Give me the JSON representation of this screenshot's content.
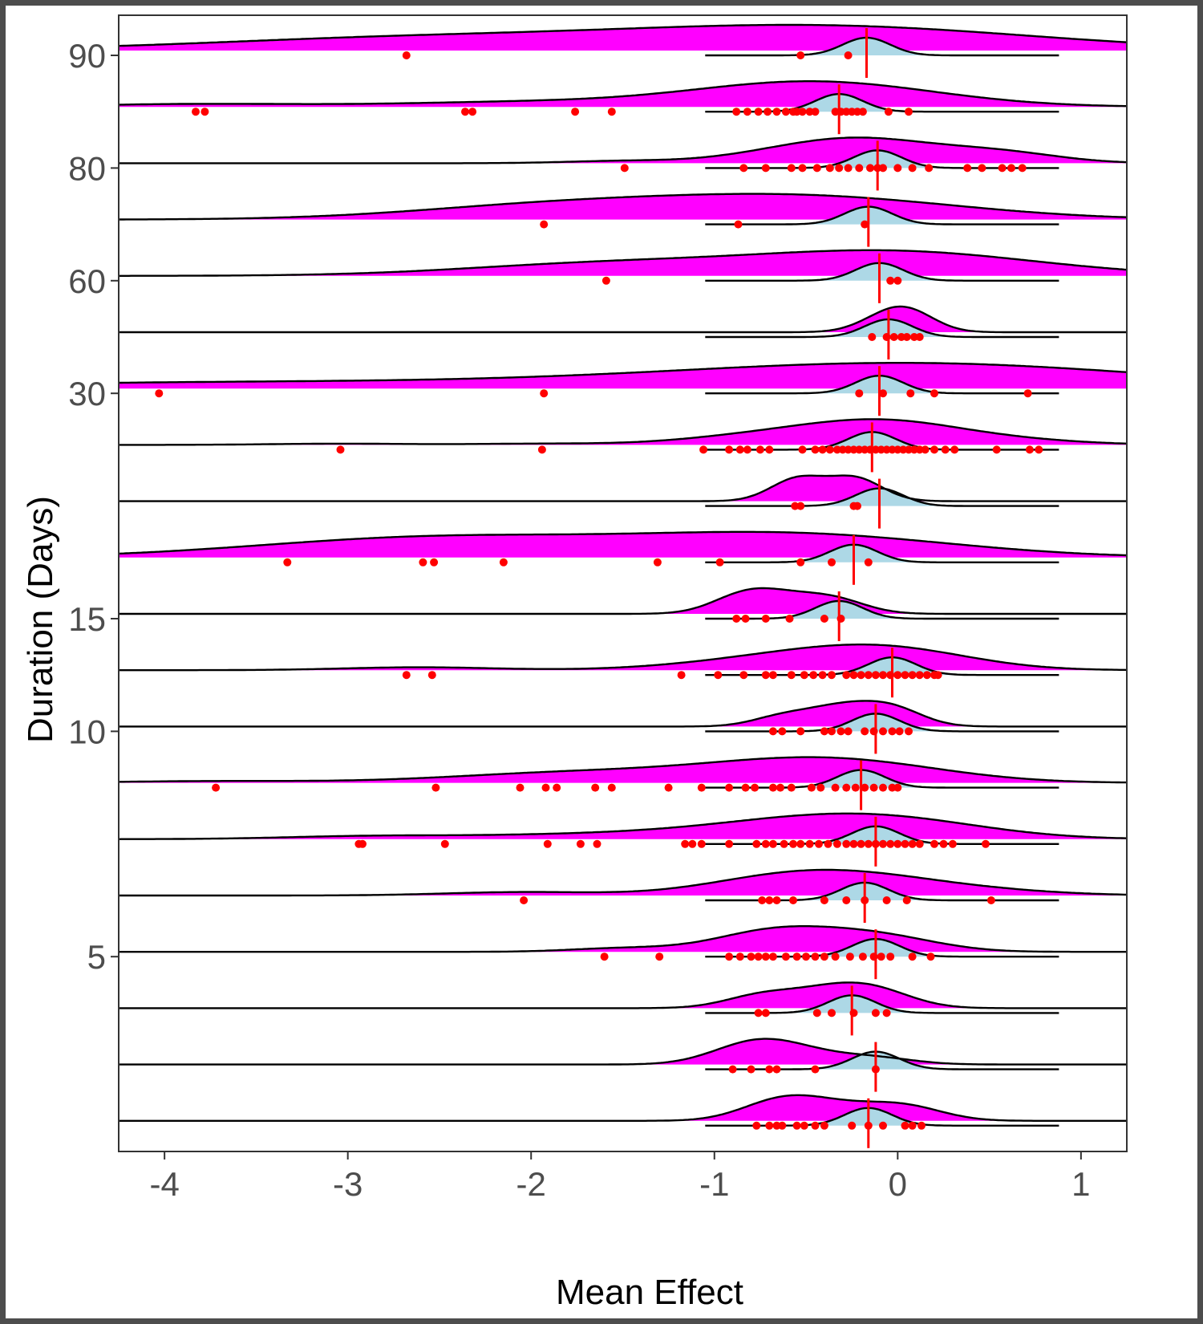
{
  "chart_data": {
    "type": "ridgeline",
    "xlabel": "Mean Effect",
    "ylabel": "Duration (Days)",
    "xlim": [
      -4.25,
      1.25
    ],
    "x_ticks": [
      "-4",
      "-3",
      "-2",
      "-1",
      "0",
      "1"
    ],
    "y_tick_labels": [
      {
        "row": 0,
        "label": "90"
      },
      {
        "row": 2,
        "label": "80"
      },
      {
        "row": 4,
        "label": "60"
      },
      {
        "row": 6,
        "label": "30"
      },
      {
        "row": 10,
        "label": "15"
      },
      {
        "row": 12,
        "label": "10"
      },
      {
        "row": 16,
        "label": "5"
      }
    ],
    "grid": false,
    "colors": {
      "observed_density": "#FF00FF",
      "posterior_density": "#ADD8E6",
      "points": "#FF0000",
      "mean_line": "#FF0000",
      "outline": "#000000",
      "frame": "#4d4d4d"
    },
    "rows": [
      {
        "mean": -0.17,
        "points": [
          -2.68,
          -0.53,
          -0.27
        ]
      },
      {
        "mean": -0.32,
        "points": [
          -3.83,
          -3.78,
          -2.36,
          -2.32,
          -1.76,
          -1.56,
          -0.88,
          -0.82,
          -0.76,
          -0.71,
          -0.66,
          -0.61,
          -0.57,
          -0.55,
          -0.52,
          -0.48,
          -0.45,
          -0.34,
          -0.31,
          -0.28,
          -0.25,
          -0.22,
          -0.19,
          -0.05,
          0.06
        ]
      },
      {
        "mean": -0.11,
        "points": [
          -1.49,
          -0.84,
          -0.72,
          -0.58,
          -0.52,
          -0.44,
          -0.37,
          -0.32,
          -0.27,
          -0.21,
          -0.15,
          -0.11,
          -0.08,
          0.0,
          0.08,
          0.17,
          0.38,
          0.46,
          0.57,
          0.62,
          0.68
        ]
      },
      {
        "mean": -0.16,
        "points": [
          -1.93,
          -0.87,
          -0.18
        ]
      },
      {
        "mean": -0.1,
        "points": [
          -1.59,
          -0.04,
          0.0
        ]
      },
      {
        "mean": -0.05,
        "points": [
          -0.14,
          -0.06,
          -0.02,
          0.02,
          0.05,
          0.09,
          0.12
        ]
      },
      {
        "mean": -0.1,
        "points": [
          -4.03,
          -1.93,
          -0.21,
          -0.08,
          0.07,
          0.2,
          0.71
        ]
      },
      {
        "mean": -0.14,
        "points": [
          -3.04,
          -1.94,
          -1.06,
          -0.92,
          -0.86,
          -0.82,
          -0.75,
          -0.7,
          -0.52,
          -0.45,
          -0.41,
          -0.37,
          -0.33,
          -0.3,
          -0.27,
          -0.24,
          -0.21,
          -0.18,
          -0.15,
          -0.12,
          -0.09,
          -0.06,
          -0.03,
          0.0,
          0.03,
          0.06,
          0.09,
          0.12,
          0.15,
          0.2,
          0.26,
          0.31,
          0.54,
          0.72,
          0.77
        ]
      },
      {
        "mean": -0.1,
        "points": [
          -0.56,
          -0.53,
          -0.24,
          -0.22
        ]
      },
      {
        "mean": -0.24,
        "points": [
          -3.33,
          -2.59,
          -2.53,
          -2.15,
          -1.31,
          -0.97,
          -0.53,
          -0.36,
          -0.16
        ]
      },
      {
        "mean": -0.32,
        "points": [
          -0.88,
          -0.83,
          -0.72,
          -0.59,
          -0.4,
          -0.31
        ]
      },
      {
        "mean": -0.03,
        "points": [
          -2.68,
          -2.54,
          -1.18,
          -0.98,
          -0.84,
          -0.72,
          -0.68,
          -0.58,
          -0.51,
          -0.46,
          -0.41,
          -0.36,
          -0.28,
          -0.24,
          -0.2,
          -0.16,
          -0.12,
          -0.08,
          -0.04,
          0.0,
          0.04,
          0.08,
          0.12,
          0.16,
          0.2,
          0.22
        ]
      },
      {
        "mean": -0.12,
        "points": [
          -0.68,
          -0.63,
          -0.53,
          -0.4,
          -0.36,
          -0.31,
          -0.27,
          -0.18,
          -0.13,
          -0.08,
          -0.03,
          0.01,
          0.06
        ]
      },
      {
        "mean": -0.2,
        "points": [
          -3.72,
          -2.52,
          -2.06,
          -1.92,
          -1.86,
          -1.65,
          -1.56,
          -1.25,
          -1.07,
          -0.92,
          -0.83,
          -0.78,
          -0.68,
          -0.64,
          -0.58,
          -0.47,
          -0.42,
          -0.34,
          -0.28,
          -0.23,
          -0.18,
          -0.13,
          -0.08,
          -0.03,
          0.0
        ]
      },
      {
        "mean": -0.12,
        "points": [
          -2.94,
          -2.92,
          -2.47,
          -1.91,
          -1.73,
          -1.64,
          -1.16,
          -1.12,
          -1.07,
          -0.92,
          -0.77,
          -0.72,
          -0.68,
          -0.62,
          -0.57,
          -0.53,
          -0.48,
          -0.43,
          -0.38,
          -0.33,
          -0.28,
          -0.24,
          -0.2,
          -0.16,
          -0.12,
          -0.08,
          -0.04,
          0.0,
          0.04,
          0.08,
          0.12,
          0.2,
          0.25,
          0.3,
          0.48
        ]
      },
      {
        "mean": -0.18,
        "points": [
          -2.04,
          -0.74,
          -0.7,
          -0.66,
          -0.57,
          -0.4,
          -0.28,
          -0.18,
          -0.06,
          0.05,
          0.51
        ]
      },
      {
        "mean": -0.12,
        "points": [
          -1.6,
          -1.3,
          -0.92,
          -0.86,
          -0.8,
          -0.76,
          -0.72,
          -0.68,
          -0.61,
          -0.55,
          -0.5,
          -0.45,
          -0.4,
          -0.34,
          -0.26,
          -0.19,
          -0.13,
          -0.09,
          -0.04,
          0.08,
          0.18
        ]
      },
      {
        "mean": -0.25,
        "points": [
          -0.76,
          -0.72,
          -0.44,
          -0.36,
          -0.24,
          -0.12,
          -0.06
        ]
      },
      {
        "mean": -0.12,
        "points": [
          -0.9,
          -0.8,
          -0.7,
          -0.66,
          -0.45,
          -0.12
        ]
      },
      {
        "mean": -0.16,
        "points": [
          -0.77,
          -0.7,
          -0.66,
          -0.63,
          -0.55,
          -0.51,
          -0.45,
          -0.4,
          -0.25,
          -0.16,
          -0.08,
          0.04,
          0.08,
          0.13
        ]
      }
    ]
  }
}
